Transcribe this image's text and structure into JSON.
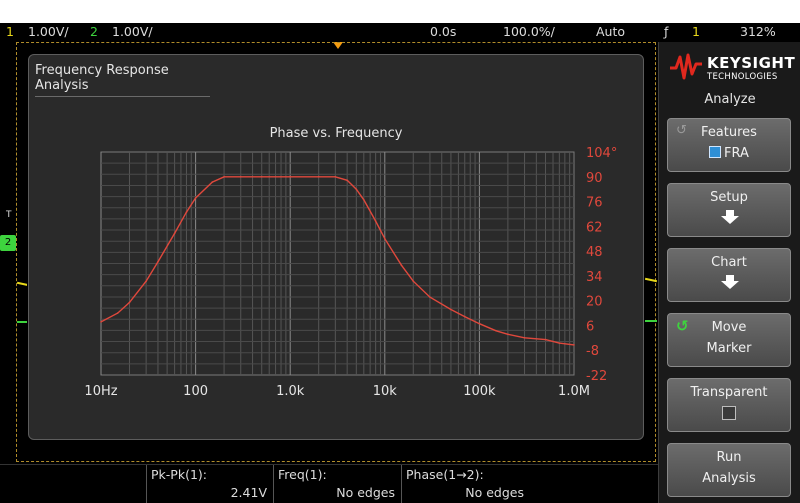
{
  "status": {
    "ch1_num": "1",
    "ch1_scale": "1.00V/",
    "ch2_num": "2",
    "ch2_scale": "1.00V/",
    "time_delay": "0.0s",
    "time_scale": "100.0%/",
    "trigger_mode": "Auto",
    "trigger_ch": "1",
    "trigger_level": "312%"
  },
  "dialog": {
    "title": "Frequency Response Analysis"
  },
  "chart_data": {
    "type": "line",
    "title": "Phase vs. Frequency",
    "xscale": "log",
    "xlim": [
      10,
      1000000
    ],
    "ylim": [
      -22,
      104
    ],
    "x_tick_labels": [
      "10Hz",
      "100",
      "1.0k",
      "10k",
      "100k",
      "1.0M"
    ],
    "x_tick_values": [
      10,
      100,
      1000,
      10000,
      100000,
      1000000
    ],
    "y_tick_labels": [
      "104°",
      "90",
      "76",
      "62",
      "48",
      "34",
      "20",
      "6",
      "-8",
      "-22"
    ],
    "y_tick_values": [
      104,
      90,
      76,
      62,
      48,
      34,
      20,
      6,
      -8,
      -22
    ],
    "series": [
      {
        "color": "#e0483c",
        "x": [
          10,
          15,
          20,
          30,
          40,
          60,
          80,
          100,
          150,
          200,
          300,
          500,
          1000,
          2000,
          3000,
          4000,
          5000,
          6000,
          8000,
          10000,
          15000,
          20000,
          30000,
          50000,
          70000,
          100000,
          150000,
          200000,
          300000,
          500000,
          700000,
          1000000
        ],
        "y": [
          8,
          13,
          19,
          31,
          42,
          58,
          70,
          78,
          87,
          90,
          90,
          90,
          90,
          90,
          90,
          88,
          83,
          77,
          65,
          55,
          40,
          31,
          22,
          15,
          11,
          7,
          3,
          1,
          -1,
          -2,
          -4,
          -5
        ]
      }
    ]
  },
  "softkeys": {
    "brand": "KEYSIGHT",
    "brand_sub": "TECHNOLOGIES",
    "menu_title": "Analyze",
    "features_label": "Features",
    "features_value": "FRA",
    "setup_label": "Setup",
    "chart_label": "Chart",
    "move_label": "Move",
    "move_label2": "Marker",
    "transparent_label": "Transparent",
    "run_label": "Run",
    "run_label2": "Analysis"
  },
  "measurements": [
    {
      "label": "Pk-Pk(1):",
      "value": "2.41V"
    },
    {
      "label": "Freq(1):",
      "value": "No edges"
    },
    {
      "label": "Phase(1→2):",
      "value": "No edges"
    }
  ],
  "colors": {
    "ch1": "#e8d81a",
    "ch2": "#3ed33e",
    "phase_trace": "#e0483c"
  },
  "icons": [
    "keysight-logo-icon",
    "rotate-knob-icon",
    "down-arrow-icon",
    "checkbox-icon",
    "trigger-edge-icon"
  ]
}
